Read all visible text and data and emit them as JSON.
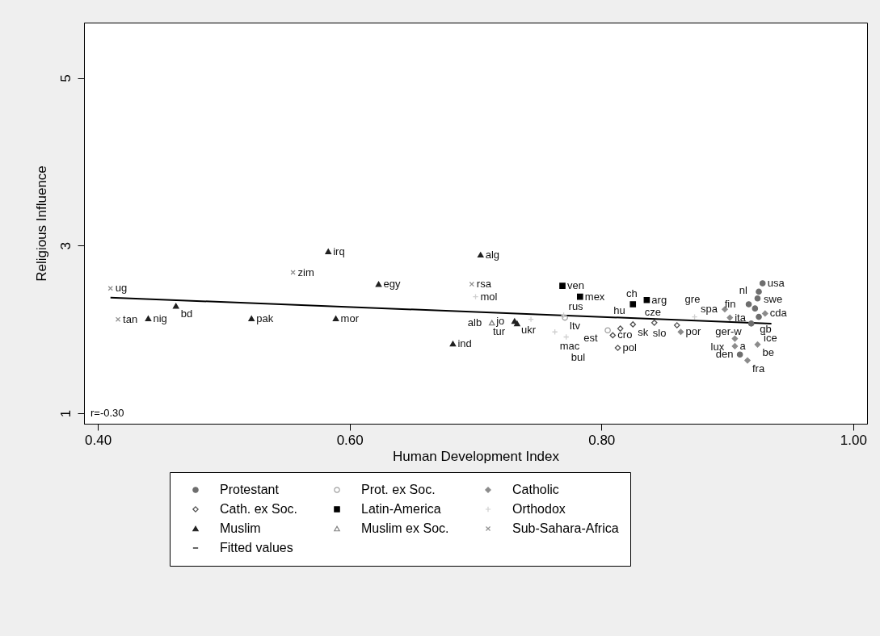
{
  "chart_data": {
    "type": "scatter",
    "xlabel": "Human Development Index",
    "ylabel": "Religious Influence",
    "xlim": [
      0.389,
      1.011
    ],
    "ylim": [
      0.875,
      5.66
    ],
    "xticks": [
      {
        "value": 0.4,
        "label": "0.40"
      },
      {
        "value": 0.6,
        "label": "0.60"
      },
      {
        "value": 0.8,
        "label": "0.80"
      },
      {
        "value": 1.0,
        "label": "1.00"
      }
    ],
    "yticks": [
      1,
      3,
      5
    ],
    "grid": false,
    "legend": "bottom",
    "series": [
      {
        "name": "Protestant",
        "color": "#6e6e6e",
        "marker": "circle",
        "x": [
          0.928,
          0.925,
          0.924,
          0.917,
          0.922,
          0.919,
          0.925,
          0.91
        ],
        "values": [
          2.55,
          2.45,
          2.37,
          2.3,
          2.25,
          2.07,
          2.15,
          1.7
        ]
      },
      {
        "name": "Prot. ex Soc.",
        "color": "#a0a0a0",
        "marker": "circle-open",
        "x": [
          0.771,
          0.805
        ],
        "values": [
          2.14,
          1.99
        ]
      },
      {
        "name": "Catholic",
        "color": "#8c8c8c",
        "marker": "diamond",
        "x": [
          0.898,
          0.902,
          0.93,
          0.863,
          0.906,
          0.906,
          0.924,
          0.916
        ],
        "values": [
          2.24,
          2.14,
          2.19,
          1.97,
          1.89,
          1.8,
          1.82,
          1.63
        ]
      },
      {
        "name": "Cath. ex Soc.",
        "color": "#505050",
        "marker": "diamond-open",
        "x": [
          0.813,
          0.809,
          0.815,
          0.825,
          0.842,
          0.86
        ],
        "values": [
          1.78,
          1.93,
          2.01,
          2.06,
          2.08,
          2.05
        ]
      },
      {
        "name": "Latin-America",
        "color": "#000000",
        "marker": "square",
        "x": [
          0.769,
          0.783,
          0.825,
          0.836
        ],
        "values": [
          2.52,
          2.39,
          2.3,
          2.35
        ]
      },
      {
        "name": "Orthodox",
        "color": "#d0d0d0",
        "marker": "plus",
        "x": [
          0.7,
          0.744,
          0.77,
          0.763,
          0.772,
          0.874
        ],
        "values": [
          2.39,
          2.12,
          2.17,
          1.97,
          1.91,
          2.15
        ]
      },
      {
        "name": "Muslim",
        "color": "#202020",
        "marker": "triangle",
        "x": [
          0.44,
          0.462,
          0.522,
          0.583,
          0.589,
          0.623,
          0.704,
          0.682,
          0.731,
          0.733
        ],
        "values": [
          2.13,
          2.28,
          2.13,
          2.93,
          2.13,
          2.54,
          2.89,
          1.83,
          2.1,
          2.07
        ]
      },
      {
        "name": "Muslim ex Soc.",
        "color": "#808080",
        "marker": "triangle-open",
        "x": [
          0.713
        ],
        "values": [
          2.08
        ]
      },
      {
        "name": "Sub-Sahara-Africa",
        "color": "#909090",
        "marker": "cross",
        "x": [
          0.41,
          0.416,
          0.555,
          0.697
        ],
        "values": [
          2.49,
          2.12,
          2.68,
          2.54
        ]
      },
      {
        "name": "Fitted values",
        "type": "line",
        "color": "#000000",
        "x": [
          0.41,
          0.935
        ],
        "values": [
          2.38,
          2.07
        ]
      }
    ],
    "annotations": [
      "r=-0.30",
      {
        "text": "usa",
        "x": 0.928,
        "y": 2.55
      },
      {
        "text": "swe",
        "x": 0.925,
        "y": 2.45
      },
      {
        "text": "nl",
        "x": 0.924,
        "y": 2.37
      },
      {
        "text": "fin",
        "x": 0.917,
        "y": 2.3
      },
      {
        "text": "gb",
        "x": 0.922,
        "y": 2.25
      },
      {
        "text": "ger-w",
        "x": 0.919,
        "y": 2.07
      },
      {
        "text": "ice",
        "x": 0.925,
        "y": 2.15
      },
      {
        "text": "den",
        "x": 0.91,
        "y": 1.7
      },
      {
        "text": "ltv",
        "x": 0.771,
        "y": 2.14
      },
      {
        "text": "est",
        "x": 0.805,
        "y": 1.99
      },
      {
        "text": "spa",
        "x": 0.898,
        "y": 2.24
      },
      {
        "text": "ita",
        "x": 0.902,
        "y": 2.14
      },
      {
        "text": "cda",
        "x": 0.93,
        "y": 2.19
      },
      {
        "text": "por",
        "x": 0.863,
        "y": 1.97
      },
      {
        "text": "lux",
        "x": 0.906,
        "y": 1.89
      },
      {
        "text": "a",
        "x": 0.906,
        "y": 1.8
      },
      {
        "text": "be",
        "x": 0.924,
        "y": 1.82
      },
      {
        "text": "fra",
        "x": 0.916,
        "y": 1.63
      },
      {
        "text": "pol",
        "x": 0.813,
        "y": 1.78
      },
      {
        "text": "cro",
        "x": 0.809,
        "y": 1.93
      },
      {
        "text": "hu",
        "x": 0.815,
        "y": 2.01
      },
      {
        "text": "sk",
        "x": 0.825,
        "y": 2.06
      },
      {
        "text": "cze",
        "x": 0.842,
        "y": 2.08
      },
      {
        "text": "slo",
        "x": 0.86,
        "y": 2.05
      },
      {
        "text": "ven",
        "x": 0.769,
        "y": 2.52
      },
      {
        "text": "mex",
        "x": 0.783,
        "y": 2.39
      },
      {
        "text": "ch",
        "x": 0.825,
        "y": 2.3
      },
      {
        "text": "arg",
        "x": 0.836,
        "y": 2.35
      },
      {
        "text": "mol",
        "x": 0.7,
        "y": 2.39
      },
      {
        "text": "ukr",
        "x": 0.744,
        "y": 2.12
      },
      {
        "text": "rus",
        "x": 0.77,
        "y": 2.17
      },
      {
        "text": "mac",
        "x": 0.763,
        "y": 1.97
      },
      {
        "text": "bul",
        "x": 0.772,
        "y": 1.91
      },
      {
        "text": "gre",
        "x": 0.874,
        "y": 2.15
      },
      {
        "text": "nig",
        "x": 0.44,
        "y": 2.13
      },
      {
        "text": "bd",
        "x": 0.462,
        "y": 2.28
      },
      {
        "text": "pak",
        "x": 0.522,
        "y": 2.13
      },
      {
        "text": "irq",
        "x": 0.583,
        "y": 2.93
      },
      {
        "text": "mor",
        "x": 0.589,
        "y": 2.13
      },
      {
        "text": "egy",
        "x": 0.623,
        "y": 2.54
      },
      {
        "text": "alg",
        "x": 0.704,
        "y": 2.89
      },
      {
        "text": "ind",
        "x": 0.682,
        "y": 1.83
      },
      {
        "text": "jo",
        "x": 0.731,
        "y": 2.1
      },
      {
        "text": "tur",
        "x": 0.733,
        "y": 2.07
      },
      {
        "text": "alb",
        "x": 0.713,
        "y": 2.08
      },
      {
        "text": "ug",
        "x": 0.41,
        "y": 2.49
      },
      {
        "text": "tan",
        "x": 0.416,
        "y": 2.12
      },
      {
        "text": "zim",
        "x": 0.555,
        "y": 2.68
      },
      {
        "text": "rsa",
        "x": 0.697,
        "y": 2.54
      }
    ]
  }
}
